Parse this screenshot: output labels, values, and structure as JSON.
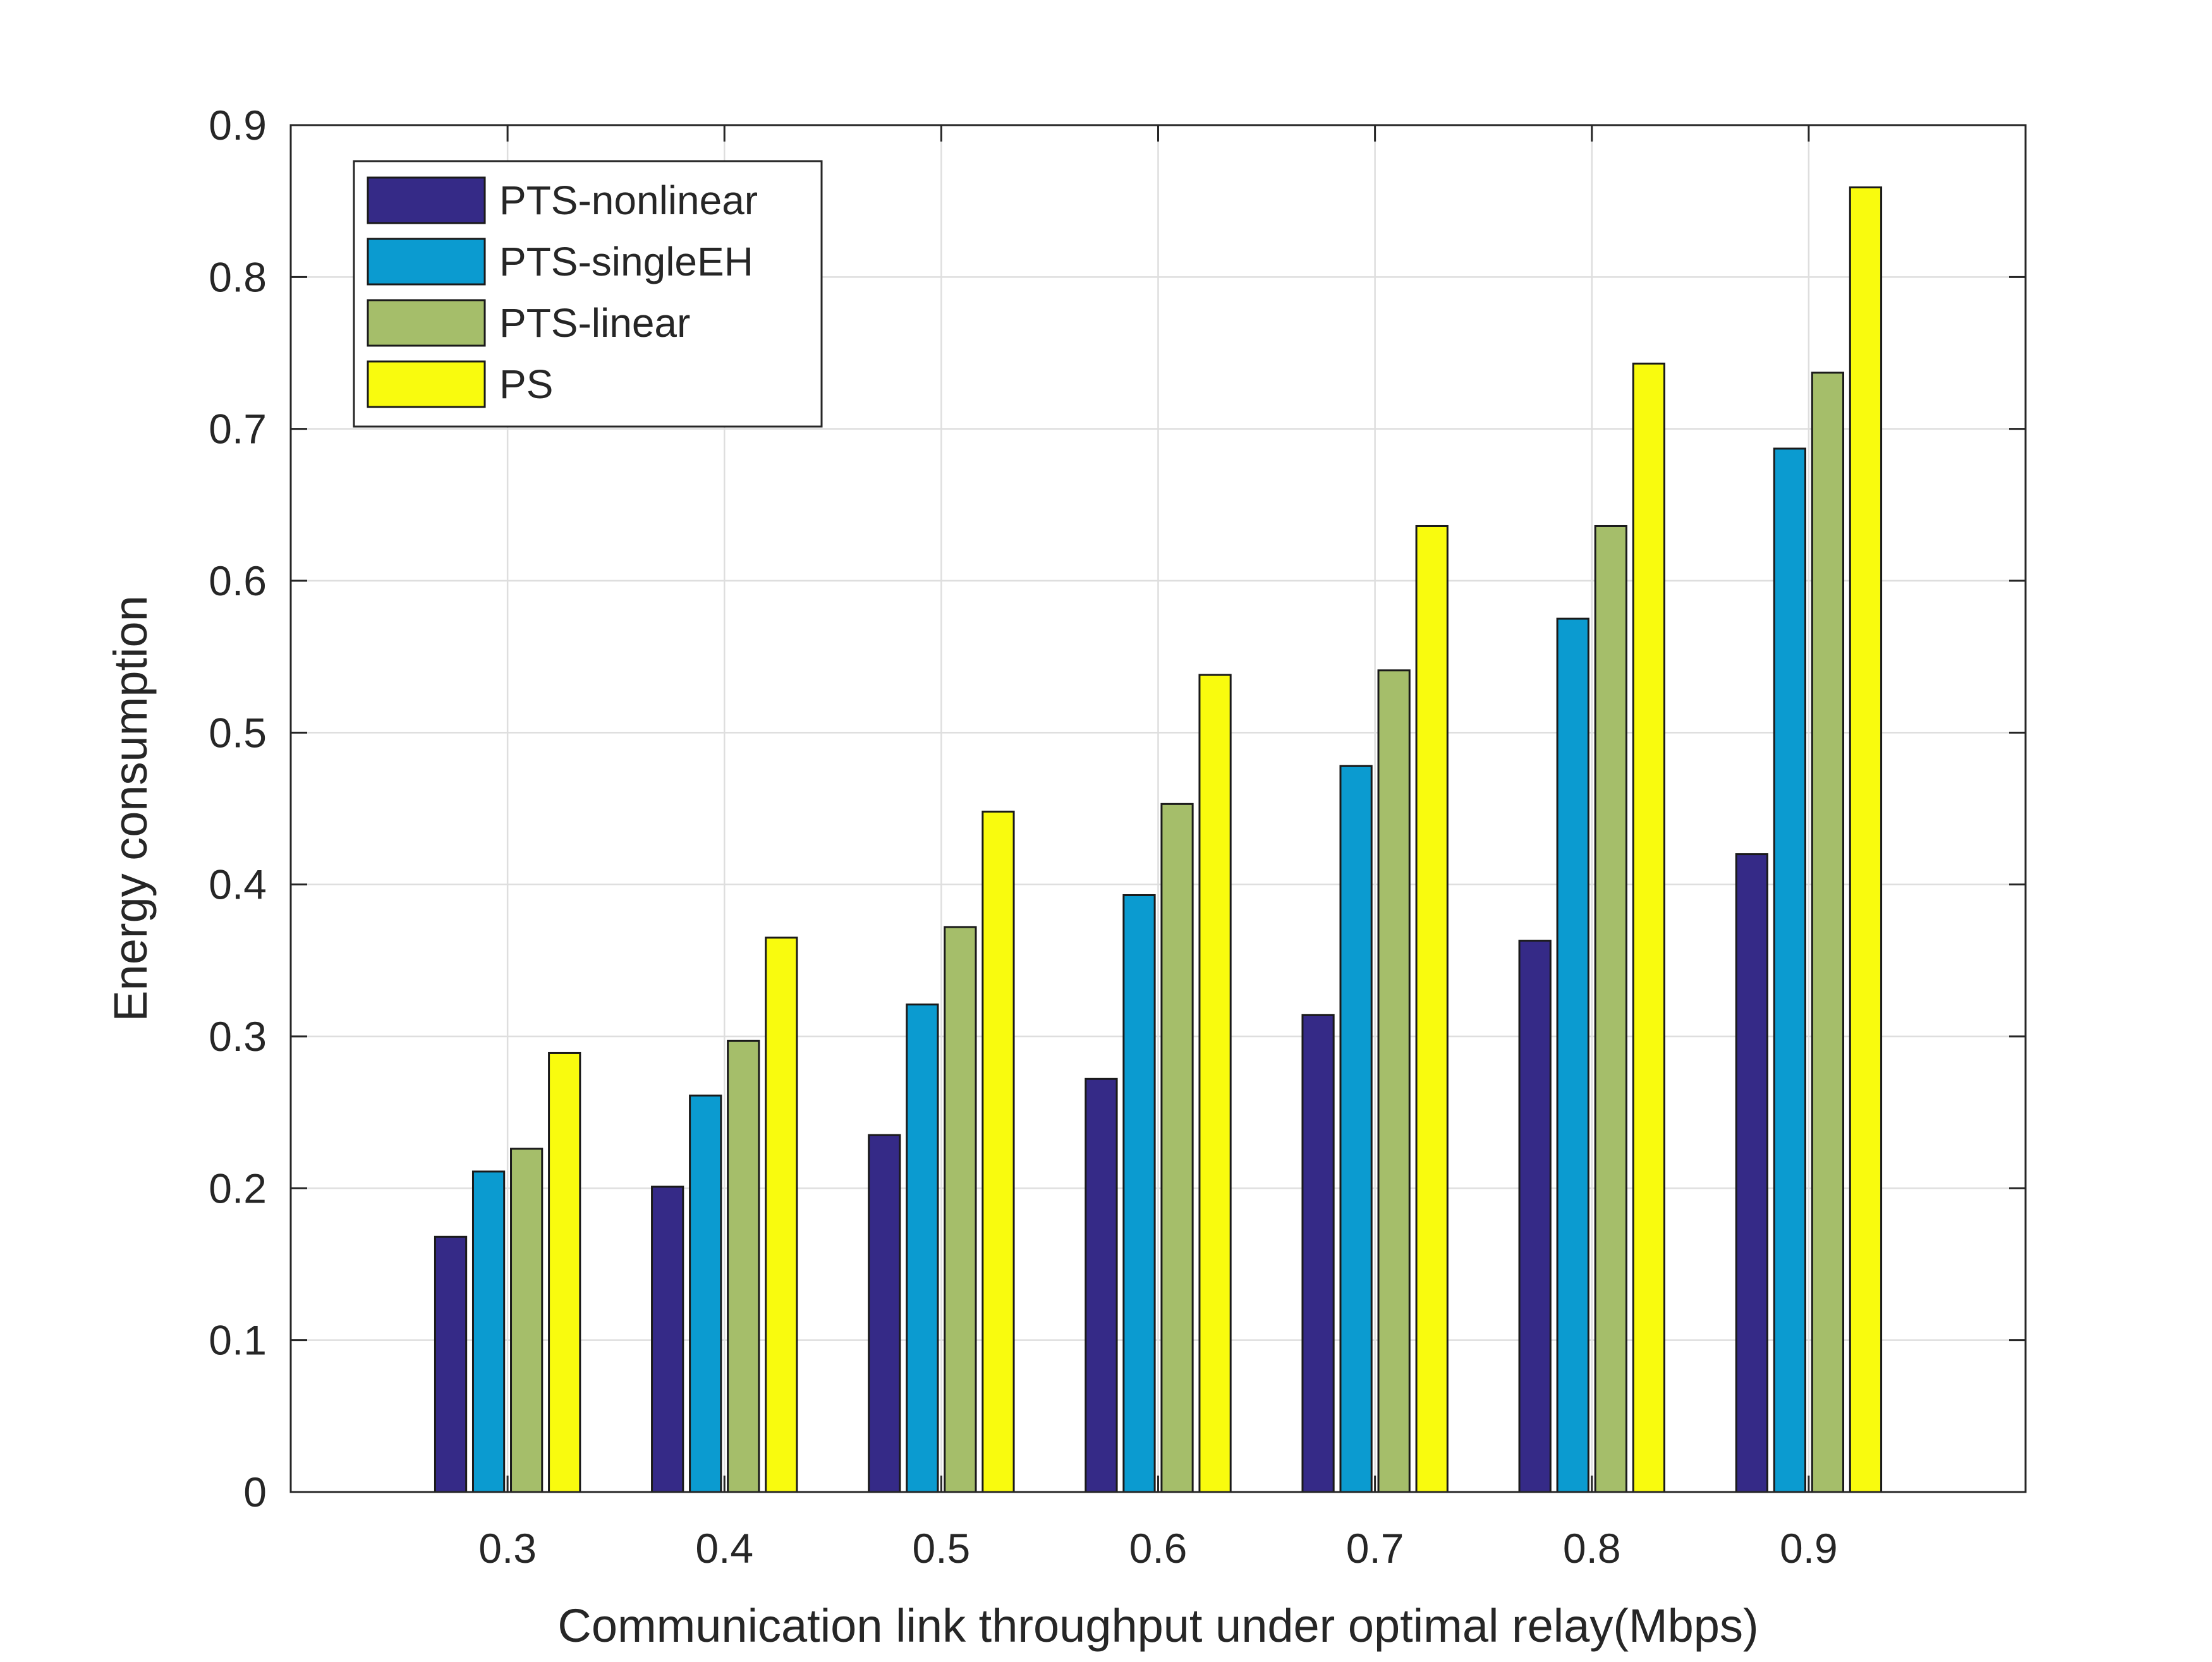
{
  "chart_data": {
    "type": "bar",
    "title": "",
    "xlabel": "Communication link throughput under optimal relay(Mbps)",
    "ylabel": "Energy consumption",
    "categories": [
      "0.3",
      "0.4",
      "0.5",
      "0.6",
      "0.7",
      "0.8",
      "0.9"
    ],
    "xlim": [
      0.2,
      1.0
    ],
    "ylim": [
      0,
      0.9
    ],
    "yticks": [
      "0",
      "0.1",
      "0.2",
      "0.3",
      "0.4",
      "0.5",
      "0.6",
      "0.7",
      "0.8",
      "0.9"
    ],
    "grid": true,
    "legend_position": "top-left",
    "series": [
      {
        "name": "PTS-nonlinear",
        "color": "#352a87",
        "values": [
          0.168,
          0.201,
          0.235,
          0.272,
          0.314,
          0.363,
          0.42
        ]
      },
      {
        "name": "PTS-singleEH",
        "color": "#0b9bd0",
        "values": [
          0.211,
          0.261,
          0.321,
          0.393,
          0.478,
          0.575,
          0.687
        ]
      },
      {
        "name": "PTS-linear",
        "color": "#a5be6a",
        "values": [
          0.226,
          0.297,
          0.372,
          0.453,
          0.541,
          0.636,
          0.737
        ]
      },
      {
        "name": "PS",
        "color": "#f9fb0e",
        "values": [
          0.289,
          0.365,
          0.448,
          0.538,
          0.636,
          0.743,
          0.859
        ]
      }
    ]
  }
}
